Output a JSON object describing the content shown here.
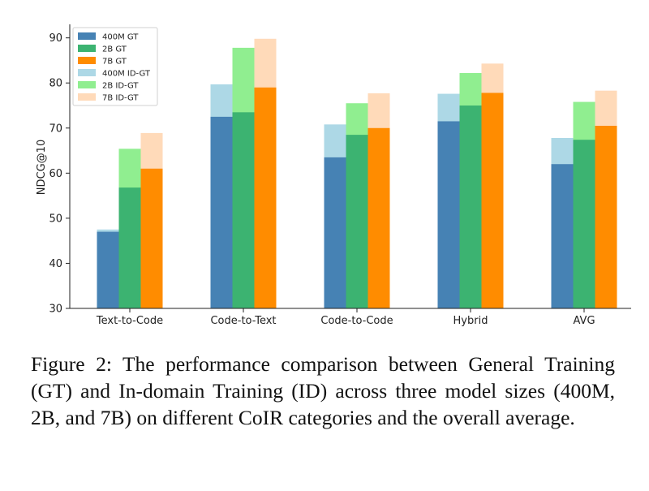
{
  "caption": "Figure 2: The performance comparison between General Training (GT) and In-domain Training (ID) across three model sizes (400M, 2B, and 7B) on different CoIR categories and the overall average.",
  "chart_data": {
    "type": "bar",
    "stacked_overlay": true,
    "categories": [
      "Text-to-Code",
      "Code-to-Text",
      "Code-to-Code",
      "Hybrid",
      "AVG"
    ],
    "ylabel": "NDCG@10",
    "xlabel": "",
    "ylim": [
      30,
      93
    ],
    "yticks": [
      30,
      40,
      50,
      60,
      70,
      80,
      90
    ],
    "legend_position": "top-left",
    "grid": false,
    "legend": [
      "400M GT",
      "2B GT",
      "7B GT",
      "400M ID-GT",
      "2B ID-GT",
      "7B ID-GT"
    ],
    "series": [
      {
        "model": "400M",
        "gt_label": "400M GT",
        "id_label": "400M ID-GT",
        "gt_color": "#4682b4",
        "id_color": "#add8e6",
        "gt": [
          47.0,
          72.5,
          63.5,
          71.5,
          62.0
        ],
        "id": [
          47.5,
          79.7,
          70.8,
          77.6,
          67.8
        ]
      },
      {
        "model": "2B",
        "gt_label": "2B GT",
        "id_label": "2B ID-GT",
        "gt_color": "#3cb371",
        "id_color": "#90ee90",
        "gt": [
          56.8,
          73.5,
          68.5,
          75.0,
          67.4
        ],
        "id": [
          65.4,
          87.8,
          75.5,
          82.2,
          75.8
        ]
      },
      {
        "model": "7B",
        "gt_label": "7B GT",
        "id_label": "7B ID-GT",
        "gt_color": "#ff8c00",
        "id_color": "#ffdab9",
        "gt": [
          61.0,
          79.0,
          70.0,
          77.8,
          70.5
        ],
        "id": [
          68.9,
          89.8,
          77.7,
          84.3,
          78.3
        ]
      }
    ]
  }
}
